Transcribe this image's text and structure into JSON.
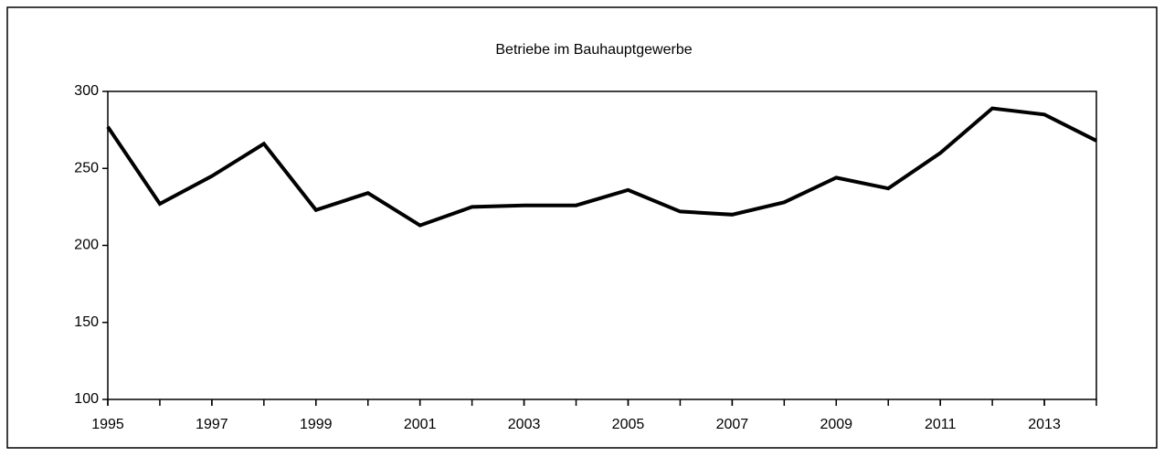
{
  "chart_data": {
    "type": "line",
    "title": "Betriebe im Bauhauptgewerbe",
    "x": [
      1995,
      1996,
      1997,
      1998,
      1999,
      2000,
      2001,
      2002,
      2003,
      2004,
      2005,
      2006,
      2007,
      2008,
      2009,
      2010,
      2011,
      2012,
      2013,
      2014
    ],
    "series": [
      {
        "name": "Betriebe",
        "color": "#000000",
        "values": [
          277,
          227,
          245,
          266,
          223,
          234,
          213,
          225,
          226,
          226,
          236,
          222,
          220,
          228,
          244,
          237,
          260,
          289,
          285,
          268
        ]
      }
    ],
    "xlim": [
      1995,
      2014
    ],
    "xticks": [
      1995,
      1997,
      1999,
      2001,
      2003,
      2005,
      2007,
      2009,
      2011,
      2013
    ],
    "ylim": [
      100,
      300
    ],
    "yticks": [
      100,
      150,
      200,
      250,
      300
    ],
    "grid": false,
    "legend": false
  }
}
